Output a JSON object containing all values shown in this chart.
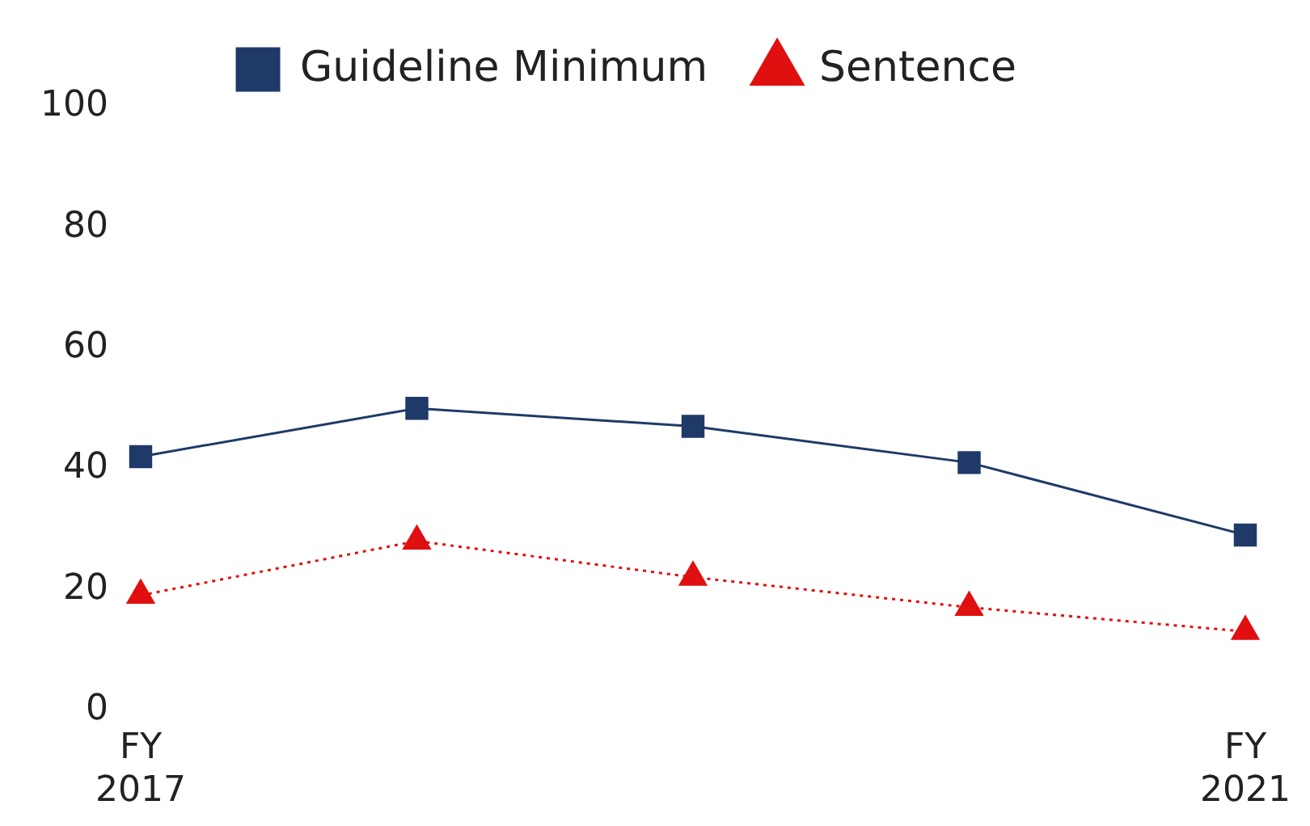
{
  "chart_data": {
    "type": "line",
    "categories": [
      "FY 2017",
      null,
      null,
      null,
      "FY 2021"
    ],
    "series": [
      {
        "name": "Guideline Minimum",
        "color": "#1f3a68",
        "marker": "square",
        "line_style": "solid",
        "values": [
          42,
          50,
          47,
          41,
          29
        ]
      },
      {
        "name": "Sentence",
        "color": "#e01010",
        "marker": "triangle",
        "line_style": "dotted",
        "values": [
          19,
          28,
          22,
          17,
          13
        ]
      }
    ],
    "ylim": [
      0,
      100
    ],
    "yticks": [
      0,
      20,
      40,
      60,
      80,
      100
    ],
    "grid": false,
    "legend": "top"
  }
}
